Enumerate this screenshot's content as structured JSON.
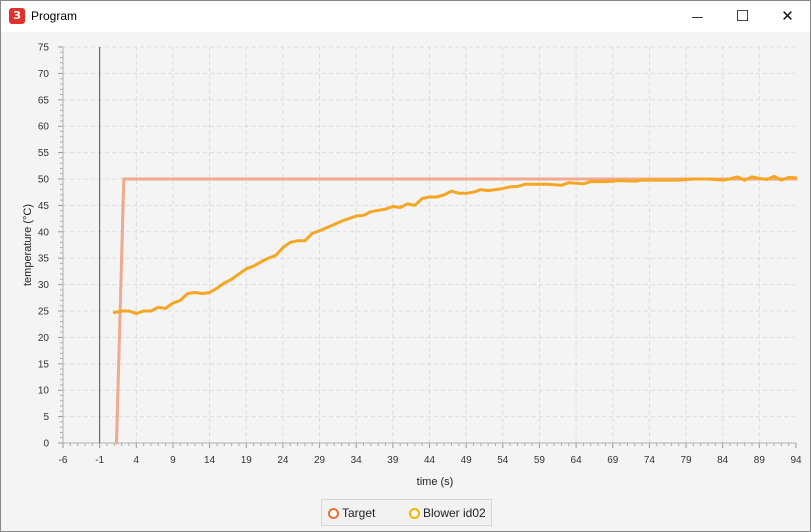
{
  "window": {
    "title": "Program",
    "app_icon_glyph": "З",
    "controls": {
      "minimize_glyph": "—",
      "maximize_glyph": "☐",
      "close_glyph": "✕"
    }
  },
  "colors": {
    "target": "#f0a98e",
    "target_legend": "#e8703d",
    "blower": "#f5a623",
    "blower_legend": "#f5b400"
  },
  "chart_data": {
    "type": "line",
    "title": "",
    "xlabel": "time (s)",
    "ylabel": "temperature (°C)",
    "xlim": [
      -6,
      94
    ],
    "ylim": [
      0,
      75
    ],
    "x_ticks": [
      "-6",
      "-1",
      "4",
      "9",
      "14",
      "19",
      "24",
      "29",
      "34",
      "39",
      "44",
      "49",
      "54",
      "59",
      "64",
      "69",
      "74",
      "79",
      "84",
      "89",
      "94"
    ],
    "y_ticks": [
      "0",
      "5",
      "10",
      "15",
      "20",
      "25",
      "30",
      "35",
      "40",
      "45",
      "50",
      "55",
      "60",
      "65",
      "70",
      "75"
    ],
    "grid": true,
    "cursor_x": -1,
    "legend_placement": "bottom-center",
    "series": [
      {
        "name": "Target",
        "x": [
          1.3,
          2.3,
          94
        ],
        "y": [
          0,
          50,
          50
        ]
      },
      {
        "name": "Blower id02",
        "x": [
          1,
          2,
          3,
          4,
          5,
          6,
          7,
          8,
          9,
          10,
          11,
          12,
          13,
          14,
          15,
          16,
          17,
          18,
          19,
          20,
          21,
          22,
          23,
          24,
          25,
          26,
          27,
          28,
          29,
          30,
          32,
          34,
          35,
          36,
          38,
          39,
          40,
          41,
          42,
          43,
          44,
          45,
          46,
          47,
          48,
          49,
          50,
          51,
          52,
          53,
          54,
          55,
          56,
          57,
          58,
          60,
          62,
          63,
          64,
          65,
          66,
          67,
          68,
          70,
          72,
          73,
          74,
          76,
          78,
          80,
          82,
          84,
          85,
          86,
          87,
          88,
          89,
          90,
          91,
          92,
          93,
          94
        ],
        "y": [
          24.7,
          25,
          25,
          24.5,
          25,
          25,
          25.7,
          25.5,
          26.5,
          27,
          28.3,
          28.5,
          28.3,
          28.5,
          29.3,
          30.3,
          31,
          32,
          33,
          33.5,
          34.3,
          35,
          35.5,
          37,
          38,
          38.3,
          38.3,
          39.7,
          40.2,
          40.8,
          42,
          43,
          43.1,
          43.8,
          44.3,
          44.8,
          44.6,
          45.3,
          45,
          46.3,
          46.6,
          46.6,
          47,
          47.7,
          47.3,
          47.3,
          47.5,
          48,
          47.8,
          48,
          48.2,
          48.5,
          48.6,
          49,
          49,
          49,
          48.8,
          49.3,
          49.2,
          49.1,
          49.5,
          49.5,
          49.5,
          49.7,
          49.6,
          49.8,
          49.8,
          49.8,
          49.8,
          50,
          50,
          49.8,
          50,
          50.4,
          49.8,
          50.4,
          50.1,
          49.9,
          50.5,
          49.8,
          50.3,
          50.2
        ]
      }
    ]
  }
}
